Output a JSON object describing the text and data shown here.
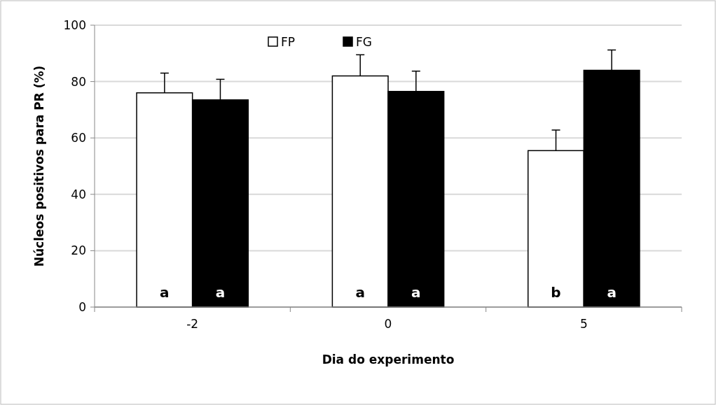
{
  "chart_data": {
    "type": "bar",
    "xlabel": "Dia do experimento",
    "ylabel": "Núcleos positivos para PR (%)",
    "categories": [
      "-2",
      "0",
      "5"
    ],
    "series": [
      {
        "name": "FP",
        "color": "#ffffff",
        "values": [
          76,
          82,
          55.5
        ],
        "errors": [
          7,
          7.5,
          7.3
        ],
        "value_labels": [
          "a",
          "a",
          "b"
        ]
      },
      {
        "name": "FG",
        "color": "#000000",
        "values": [
          73.5,
          76.5,
          84
        ],
        "errors": [
          7.3,
          7.2,
          7.2
        ],
        "value_labels": [
          "a",
          "a",
          "a"
        ]
      }
    ],
    "ylim": [
      0,
      100
    ],
    "yticks": [
      0,
      20,
      40,
      60,
      80,
      100
    ],
    "grid": "y",
    "legend": "top"
  }
}
